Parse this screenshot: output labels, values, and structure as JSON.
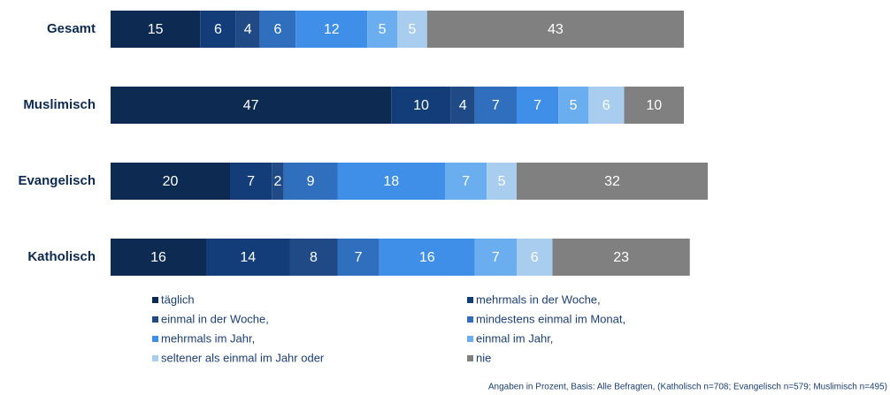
{
  "chart_data": {
    "type": "stacked_barh",
    "categories": [
      "Gesamt",
      "Muslimisch",
      "Evangelisch",
      "Katholisch"
    ],
    "series": [
      {
        "name": "täglich",
        "color": "#0d2a52",
        "values": [
          15,
          47,
          20,
          16
        ]
      },
      {
        "name": "mehrmals in der Woche,",
        "color": "#123d78",
        "values": [
          6,
          10,
          7,
          14
        ]
      },
      {
        "name": "einmal in der Woche,",
        "color": "#1f4a86",
        "values": [
          4,
          4,
          2,
          8
        ]
      },
      {
        "name": "mindestens einmal im Monat,",
        "color": "#2f6fbd",
        "values": [
          6,
          7,
          9,
          7
        ]
      },
      {
        "name": "mehrmals im Jahr,",
        "color": "#3f8fe8",
        "values": [
          12,
          7,
          18,
          16
        ]
      },
      {
        "name": "einmal im Jahr,",
        "color": "#6aaef0",
        "values": [
          5,
          5,
          7,
          7
        ]
      },
      {
        "name": "seltener als einmal im Jahr oder",
        "color": "#a9cdee",
        "values": [
          5,
          6,
          5,
          6
        ]
      },
      {
        "name": "nie",
        "color": "#808080",
        "values": [
          43,
          10,
          32,
          23
        ]
      }
    ],
    "footnote": "Angaben in Prozent, Basis: Alle Befragten, (Katholisch n=708; Evangelisch n=579; Muslimisch n=495)"
  }
}
